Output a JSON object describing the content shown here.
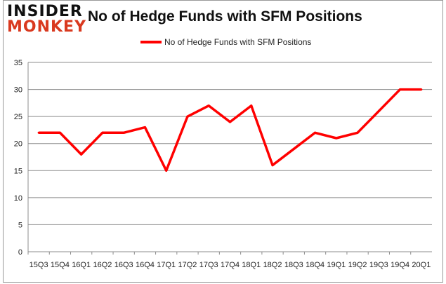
{
  "logo": {
    "line1": "INSIDER",
    "line2": "MONKEY"
  },
  "colors": {
    "series": "#ff0000",
    "grid": "#8c8c8c"
  },
  "chart_data": {
    "type": "line",
    "title": "No of Hedge Funds with SFM Positions",
    "xlabel": "",
    "ylabel": "",
    "categories": [
      "15Q3",
      "15Q4",
      "16Q1",
      "16Q2",
      "16Q3",
      "16Q4",
      "17Q1",
      "17Q2",
      "17Q3",
      "17Q4",
      "18Q1",
      "18Q2",
      "18Q3",
      "18Q4",
      "19Q1",
      "19Q2",
      "19Q3",
      "19Q4",
      "20Q1"
    ],
    "series": [
      {
        "name": "No of Hedge Funds with SFM Positions",
        "values": [
          22,
          22,
          18,
          22,
          22,
          23,
          15,
          25,
          27,
          24,
          27,
          16,
          19,
          22,
          21,
          22,
          26,
          30,
          30
        ]
      }
    ],
    "ylim": [
      0,
      35
    ],
    "yticks": [
      0,
      5,
      10,
      15,
      20,
      25,
      30,
      35
    ],
    "grid": true,
    "legend": "top-center"
  }
}
